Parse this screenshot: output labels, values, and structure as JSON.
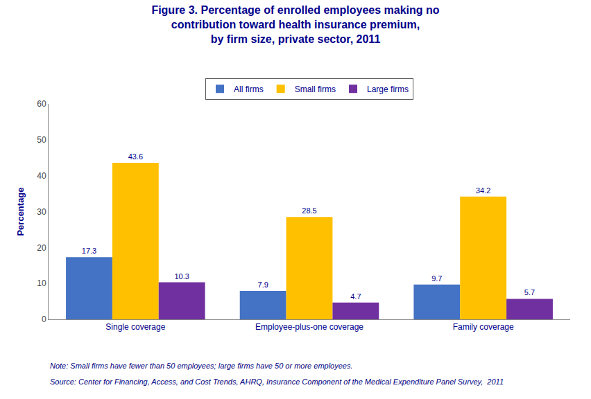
{
  "chart_data": {
    "type": "bar",
    "title": "Figure 3. Percentage of enrolled employees making no\ncontribution toward health insurance premium,\nby firm size, private sector, 2011",
    "categories": [
      "Single coverage",
      "Employee-plus-one coverage",
      "Family coverage"
    ],
    "series": [
      {
        "name": "All firms",
        "color": "#4472C4",
        "values": [
          17.3,
          7.9,
          9.7
        ]
      },
      {
        "name": "Small firms",
        "color": "#FFC000",
        "values": [
          43.6,
          28.5,
          34.2
        ]
      },
      {
        "name": "Large firms",
        "color": "#7030A0",
        "values": [
          10.3,
          4.7,
          5.7
        ]
      }
    ],
    "ylabel": "Percentage",
    "ylim": [
      0,
      60
    ],
    "yticks": [
      0,
      10,
      20,
      30,
      40,
      50,
      60
    ],
    "grid": false,
    "legend": "upper center",
    "data_labels": true,
    "annotations": [
      {
        "text": "Note: Small firms have fewer than 50 employees; large firms have 50 or more employees."
      },
      {
        "text": "Source: Center for Financing, Access, and Cost Trends, AHRQ, Insurance Component of the Medical Expenditure Panel Survey,  2011"
      }
    ]
  }
}
